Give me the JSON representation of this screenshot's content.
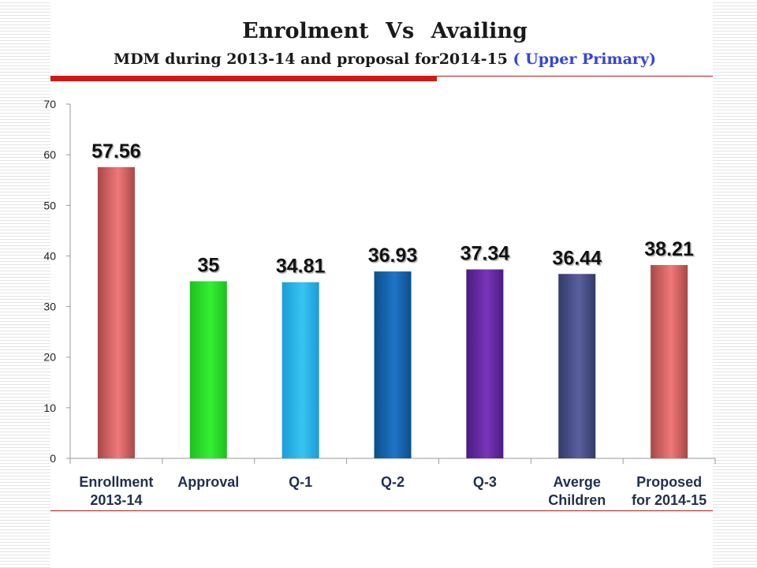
{
  "title": {
    "line1": "Enrolment   Vs    Availing",
    "line2_main": "MDM during  2013-14 and proposal for2014-15 ",
    "line2_accent": "( Upper Primary)"
  },
  "chart_data": {
    "type": "bar",
    "categories": [
      [
        "Enrollment",
        "2013-14"
      ],
      [
        "Approval"
      ],
      [
        "Q-1"
      ],
      [
        "Q-2"
      ],
      [
        "Q-3"
      ],
      [
        "Averge",
        "Children"
      ],
      [
        "Proposed",
        "for 2014-15"
      ]
    ],
    "values": [
      57.56,
      35,
      34.81,
      36.93,
      37.34,
      36.44,
      38.21
    ],
    "data_labels": [
      "57.56",
      "35",
      "34.81",
      "36.93",
      "37.34",
      "36.44",
      "38.21"
    ],
    "ylim": [
      0,
      70
    ],
    "yticks": [
      0,
      10,
      20,
      30,
      40,
      50,
      60,
      70
    ],
    "grid": false,
    "legend": "none",
    "bar_colors": [
      [
        "#a84848",
        "#f07878"
      ],
      [
        "#1fbf1f",
        "#33f033"
      ],
      [
        "#1b9bd8",
        "#38c4f2"
      ],
      [
        "#0c4f8a",
        "#1f74c8"
      ],
      [
        "#4a1c82",
        "#7a34b8"
      ],
      [
        "#323a6a",
        "#59609e"
      ],
      [
        "#a84848",
        "#f07878"
      ]
    ],
    "label_color": "#1f2f4f"
  }
}
